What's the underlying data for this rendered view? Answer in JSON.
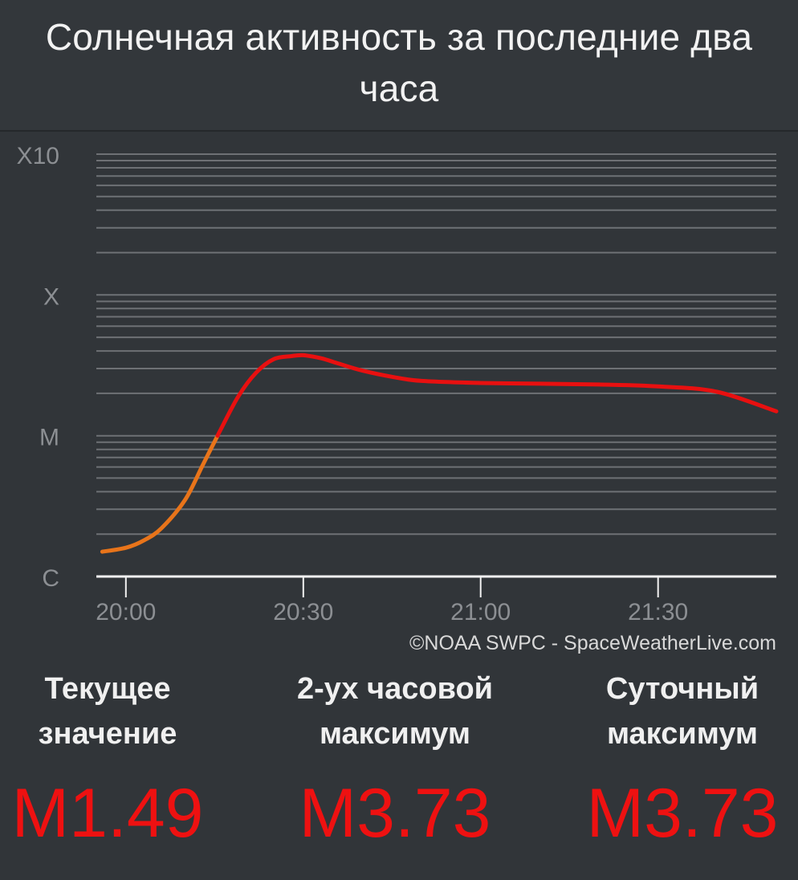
{
  "title": "Солнечная активность за последние два часа",
  "chart_data": {
    "type": "line",
    "y_scale": "log",
    "y_range_watts_per_m2": [
      1e-06,
      0.001
    ],
    "y_tick_labels": [
      {
        "label": "C",
        "value": 1e-06
      },
      {
        "label": "M",
        "value": 1e-05
      },
      {
        "label": "X",
        "value": 0.0001
      },
      {
        "label": "X10",
        "value": 0.001
      }
    ],
    "x_range": [
      "19:55",
      "21:50"
    ],
    "x_tick_labels": [
      "20:00",
      "20:30",
      "21:00",
      "21:30"
    ],
    "credit": "©NOAA SWPC - SpaceWeatherLive.com",
    "grid": true,
    "colors": {
      "c_class": "#e8741a",
      "m_class": "#e81010",
      "axis": "#f2f2f2",
      "grid": "#6e7175",
      "tick_label": "#8c8f93"
    },
    "series": [
      {
        "x": [
          "19:56",
          "20:00",
          "20:03",
          "20:06",
          "20:10",
          "20:13",
          "20:16",
          "20:19",
          "20:22",
          "20:25",
          "20:28",
          "20:30",
          "20:33",
          "20:36",
          "20:40",
          "20:45",
          "20:50",
          "21:00",
          "21:10",
          "21:20",
          "21:30",
          "21:40",
          "21:50"
        ],
        "y": [
          1.5e-06,
          1.6e-06,
          1.8e-06,
          2.2e-06,
          3.5e-06,
          6.2e-06,
          1.1e-05,
          1.9e-05,
          2.8e-05,
          3.5e-05,
          3.68e-05,
          3.73e-05,
          3.55e-05,
          3.25e-05,
          2.9e-05,
          2.62e-05,
          2.45e-05,
          2.37e-05,
          2.34e-05,
          2.31e-05,
          2.24e-05,
          2.05e-05,
          1.49e-05
        ]
      }
    ]
  },
  "stats": [
    {
      "label": "Текущее\nзначение",
      "value": "M1.49"
    },
    {
      "label": "2-ух часовой\nмаксимум",
      "value": "M3.73"
    },
    {
      "label": "Суточный\nмаксимум",
      "value": "M3.73"
    }
  ]
}
